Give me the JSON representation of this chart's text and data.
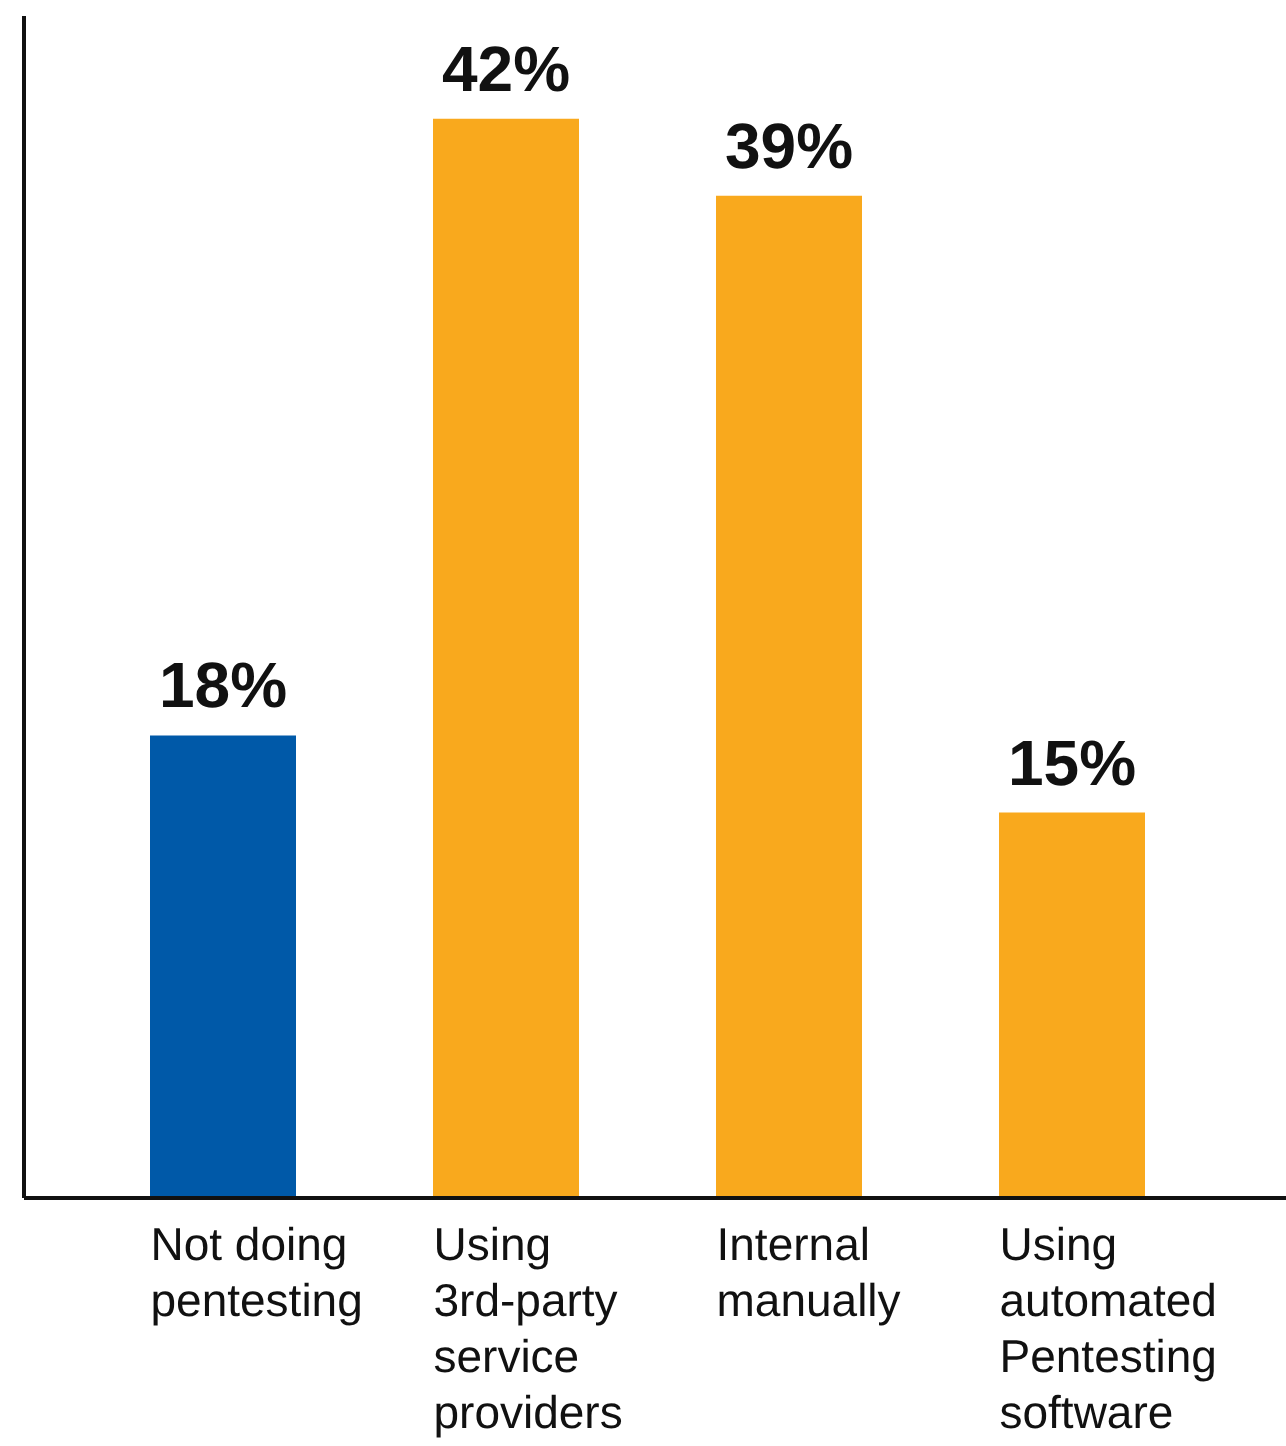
{
  "chart_data": {
    "type": "bar",
    "categories": [
      "Not doing pentesting",
      "Using 3rd-party service providers",
      "Internal manually",
      "Using automated Pentesting software"
    ],
    "values": [
      18,
      42,
      39,
      15
    ],
    "colors": [
      "#0059a8",
      "#f9a91d",
      "#f9a91d",
      "#f9a91d"
    ],
    "value_labels": [
      "18%",
      "42%",
      "39%",
      "15%"
    ],
    "ylim": [
      0,
      46
    ]
  }
}
